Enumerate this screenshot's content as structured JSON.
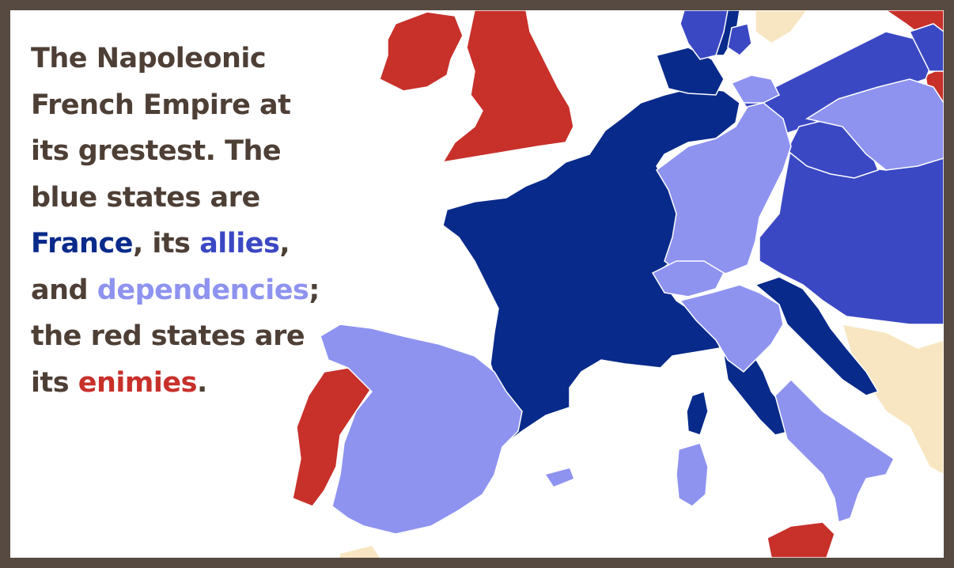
{
  "caption": {
    "line1": "The Napoleonic",
    "line2": "French Empire at",
    "line3": "its grestest. The",
    "line4": "blue states are",
    "france": "France",
    "comma_its": ", its ",
    "allies": "allies",
    "comma1": ",",
    "and": "and ",
    "dependencies": "dependencies",
    "semicolon": ";",
    "line7": "the red states are",
    "its": "its ",
    "enimies": "enimies",
    "period": "."
  },
  "colors": {
    "frame": "#574a40",
    "text": "#4e3f36",
    "france": "#082a8a",
    "allies": "#3b48c4",
    "dependencies": "#8e93f0",
    "enemies": "#c8302a",
    "neutral": "#f7e6c1",
    "water": "#ffffff"
  },
  "legend_categories": [
    "France",
    "allies",
    "dependencies",
    "enimies"
  ]
}
